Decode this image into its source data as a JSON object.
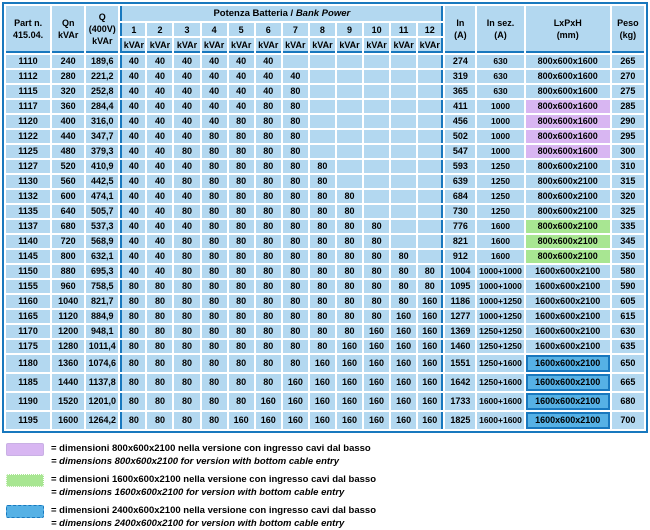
{
  "colors": {
    "accent": "#1878be",
    "cell_bg": "#b3d8f0",
    "highlight_purple": "#d8b6f2",
    "highlight_green": "#a8e692",
    "highlight_blue": "#56b1e5"
  },
  "table": {
    "header": {
      "part_line1": "Part n.",
      "part_line2": "415.04.",
      "qn_line1": "Qn",
      "qn_line2": "kVAr",
      "q_line1": "Q",
      "q_line2": "(400V)",
      "q_line3": "kVAr",
      "group_it": "Potenza Batteria / ",
      "group_en": "Bank Power",
      "bank_numbers": [
        "1",
        "2",
        "3",
        "4",
        "5",
        "6",
        "7",
        "8",
        "9",
        "10",
        "11",
        "12"
      ],
      "bank_unit": "kVAr",
      "in_line1": "In",
      "in_line2": "(A)",
      "insez_line1": "In sez.",
      "insez_line2": "(A)",
      "lxpxh_line1": "LxPxH",
      "lxpxh_line2": "(mm)",
      "peso_line1": "Peso",
      "peso_line2": "(kg)"
    },
    "rows": [
      {
        "part": "1110",
        "qn": "240",
        "q400": "189,6",
        "banks": [
          "40",
          "40",
          "40",
          "40",
          "40",
          "40",
          "",
          "",
          "",
          "",
          "",
          ""
        ],
        "in": "274",
        "in_sez": "630",
        "lxpxh": "800x600x1600",
        "dim_highlight": "none",
        "peso": "265"
      },
      {
        "part": "1112",
        "qn": "280",
        "q400": "221,2",
        "banks": [
          "40",
          "40",
          "40",
          "40",
          "40",
          "40",
          "40",
          "",
          "",
          "",
          "",
          ""
        ],
        "in": "319",
        "in_sez": "630",
        "lxpxh": "800x600x1600",
        "dim_highlight": "none",
        "peso": "270"
      },
      {
        "part": "1115",
        "qn": "320",
        "q400": "252,8",
        "banks": [
          "40",
          "40",
          "40",
          "40",
          "40",
          "40",
          "80",
          "",
          "",
          "",
          "",
          ""
        ],
        "in": "365",
        "in_sez": "630",
        "lxpxh": "800x600x1600",
        "dim_highlight": "none",
        "peso": "275"
      },
      {
        "part": "1117",
        "qn": "360",
        "q400": "284,4",
        "banks": [
          "40",
          "40",
          "40",
          "40",
          "40",
          "80",
          "80",
          "",
          "",
          "",
          "",
          ""
        ],
        "in": "411",
        "in_sez": "1000",
        "lxpxh": "800x600x1600",
        "dim_highlight": "purple",
        "peso": "285"
      },
      {
        "part": "1120",
        "qn": "400",
        "q400": "316,0",
        "banks": [
          "40",
          "40",
          "40",
          "40",
          "80",
          "80",
          "80",
          "",
          "",
          "",
          "",
          ""
        ],
        "in": "456",
        "in_sez": "1000",
        "lxpxh": "800x600x1600",
        "dim_highlight": "purple",
        "peso": "290"
      },
      {
        "part": "1122",
        "qn": "440",
        "q400": "347,7",
        "banks": [
          "40",
          "40",
          "40",
          "80",
          "80",
          "80",
          "80",
          "",
          "",
          "",
          "",
          ""
        ],
        "in": "502",
        "in_sez": "1000",
        "lxpxh": "800x600x1600",
        "dim_highlight": "purple",
        "peso": "295"
      },
      {
        "part": "1125",
        "qn": "480",
        "q400": "379,3",
        "banks": [
          "40",
          "40",
          "80",
          "80",
          "80",
          "80",
          "80",
          "",
          "",
          "",
          "",
          ""
        ],
        "in": "547",
        "in_sez": "1000",
        "lxpxh": "800x600x1600",
        "dim_highlight": "purple",
        "peso": "300"
      },
      {
        "part": "1127",
        "qn": "520",
        "q400": "410,9",
        "banks": [
          "40",
          "40",
          "40",
          "80",
          "80",
          "80",
          "80",
          "80",
          "",
          "",
          "",
          ""
        ],
        "in": "593",
        "in_sez": "1250",
        "lxpxh": "800x600x2100",
        "dim_highlight": "none",
        "peso": "310"
      },
      {
        "part": "1130",
        "qn": "560",
        "q400": "442,5",
        "banks": [
          "40",
          "40",
          "80",
          "80",
          "80",
          "80",
          "80",
          "80",
          "",
          "",
          "",
          ""
        ],
        "in": "639",
        "in_sez": "1250",
        "lxpxh": "800x600x2100",
        "dim_highlight": "none",
        "peso": "315"
      },
      {
        "part": "1132",
        "qn": "600",
        "q400": "474,1",
        "banks": [
          "40",
          "40",
          "40",
          "80",
          "80",
          "80",
          "80",
          "80",
          "80",
          "",
          "",
          ""
        ],
        "in": "684",
        "in_sez": "1250",
        "lxpxh": "800x600x2100",
        "dim_highlight": "none",
        "peso": "320"
      },
      {
        "part": "1135",
        "qn": "640",
        "q400": "505,7",
        "banks": [
          "40",
          "40",
          "80",
          "80",
          "80",
          "80",
          "80",
          "80",
          "80",
          "",
          "",
          ""
        ],
        "in": "730",
        "in_sez": "1250",
        "lxpxh": "800x600x2100",
        "dim_highlight": "none",
        "peso": "325"
      },
      {
        "part": "1137",
        "qn": "680",
        "q400": "537,3",
        "banks": [
          "40",
          "40",
          "40",
          "80",
          "80",
          "80",
          "80",
          "80",
          "80",
          "80",
          "",
          ""
        ],
        "in": "776",
        "in_sez": "1600",
        "lxpxh": "800x600x2100",
        "dim_highlight": "green",
        "peso": "335"
      },
      {
        "part": "1140",
        "qn": "720",
        "q400": "568,9",
        "banks": [
          "40",
          "40",
          "80",
          "80",
          "80",
          "80",
          "80",
          "80",
          "80",
          "80",
          "",
          ""
        ],
        "in": "821",
        "in_sez": "1600",
        "lxpxh": "800x600x2100",
        "dim_highlight": "green",
        "peso": "345"
      },
      {
        "part": "1145",
        "qn": "800",
        "q400": "632,1",
        "banks": [
          "40",
          "40",
          "80",
          "80",
          "80",
          "80",
          "80",
          "80",
          "80",
          "80",
          "80",
          ""
        ],
        "in": "912",
        "in_sez": "1600",
        "lxpxh": "800x600x2100",
        "dim_highlight": "green",
        "peso": "350"
      },
      {
        "part": "1150",
        "qn": "880",
        "q400": "695,3",
        "banks": [
          "40",
          "40",
          "80",
          "80",
          "80",
          "80",
          "80",
          "80",
          "80",
          "80",
          "80",
          "80"
        ],
        "in": "1004",
        "in_sez": "1000+1000",
        "lxpxh": "1600x600x2100",
        "dim_highlight": "none",
        "peso": "580"
      },
      {
        "part": "1155",
        "qn": "960",
        "q400": "758,5",
        "banks": [
          "80",
          "80",
          "80",
          "80",
          "80",
          "80",
          "80",
          "80",
          "80",
          "80",
          "80",
          "80"
        ],
        "in": "1095",
        "in_sez": "1000+1000",
        "lxpxh": "1600x600x2100",
        "dim_highlight": "none",
        "peso": "590"
      },
      {
        "part": "1160",
        "qn": "1040",
        "q400": "821,7",
        "banks": [
          "80",
          "80",
          "80",
          "80",
          "80",
          "80",
          "80",
          "80",
          "80",
          "80",
          "80",
          "160"
        ],
        "in": "1186",
        "in_sez": "1000+1250",
        "lxpxh": "1600x600x2100",
        "dim_highlight": "none",
        "peso": "605"
      },
      {
        "part": "1165",
        "qn": "1120",
        "q400": "884,9",
        "banks": [
          "80",
          "80",
          "80",
          "80",
          "80",
          "80",
          "80",
          "80",
          "80",
          "80",
          "160",
          "160"
        ],
        "in": "1277",
        "in_sez": "1000+1250",
        "lxpxh": "1600x600x2100",
        "dim_highlight": "none",
        "peso": "615"
      },
      {
        "part": "1170",
        "qn": "1200",
        "q400": "948,1",
        "banks": [
          "80",
          "80",
          "80",
          "80",
          "80",
          "80",
          "80",
          "80",
          "80",
          "160",
          "160",
          "160"
        ],
        "in": "1369",
        "in_sez": "1250+1250",
        "lxpxh": "1600x600x2100",
        "dim_highlight": "none",
        "peso": "630"
      },
      {
        "part": "1175",
        "qn": "1280",
        "q400": "1011,4",
        "banks": [
          "80",
          "80",
          "80",
          "80",
          "80",
          "80",
          "80",
          "80",
          "160",
          "160",
          "160",
          "160"
        ],
        "in": "1460",
        "in_sez": "1250+1250",
        "lxpxh": "1600x600x2100",
        "dim_highlight": "none",
        "peso": "635"
      },
      {
        "part": "1180",
        "qn": "1360",
        "q400": "1074,6",
        "banks": [
          "80",
          "80",
          "80",
          "80",
          "80",
          "80",
          "80",
          "160",
          "160",
          "160",
          "160",
          "160"
        ],
        "in": "1551",
        "in_sez": "1250+1600",
        "lxpxh": "1600x600x2100",
        "dim_highlight": "blue",
        "peso": "650"
      },
      {
        "part": "1185",
        "qn": "1440",
        "q400": "1137,8",
        "banks": [
          "80",
          "80",
          "80",
          "80",
          "80",
          "80",
          "160",
          "160",
          "160",
          "160",
          "160",
          "160"
        ],
        "in": "1642",
        "in_sez": "1250+1600",
        "lxpxh": "1600x600x2100",
        "dim_highlight": "blue",
        "peso": "665"
      },
      {
        "part": "1190",
        "qn": "1520",
        "q400": "1201,0",
        "banks": [
          "80",
          "80",
          "80",
          "80",
          "80",
          "160",
          "160",
          "160",
          "160",
          "160",
          "160",
          "160"
        ],
        "in": "1733",
        "in_sez": "1600+1600",
        "lxpxh": "1600x600x2100",
        "dim_highlight": "blue",
        "peso": "680"
      },
      {
        "part": "1195",
        "qn": "1600",
        "q400": "1264,2",
        "banks": [
          "80",
          "80",
          "80",
          "80",
          "160",
          "160",
          "160",
          "160",
          "160",
          "160",
          "160",
          "160"
        ],
        "in": "1825",
        "in_sez": "1600+1600",
        "lxpxh": "1600x600x2100",
        "dim_highlight": "blue",
        "peso": "700"
      }
    ]
  },
  "legend": [
    {
      "swatch": "purple",
      "line_it": "= dimensioni 800x600x2100 nella versione con ingresso cavi dal basso",
      "line_en": "= dimensions 800x600x2100 for version with bottom cable entry"
    },
    {
      "swatch": "green",
      "line_it": "= dimensioni 1600x600x2100 nella versione con ingresso cavi dal basso",
      "line_en": "= dimensions 1600x600x2100 for version with bottom cable entry"
    },
    {
      "swatch": "blue",
      "line_it": "= dimensioni 2400x600x2100 nella versione con ingresso cavi dal basso",
      "line_en": "= dimensions 2400x600x2100 for version with bottom cable entry"
    }
  ]
}
